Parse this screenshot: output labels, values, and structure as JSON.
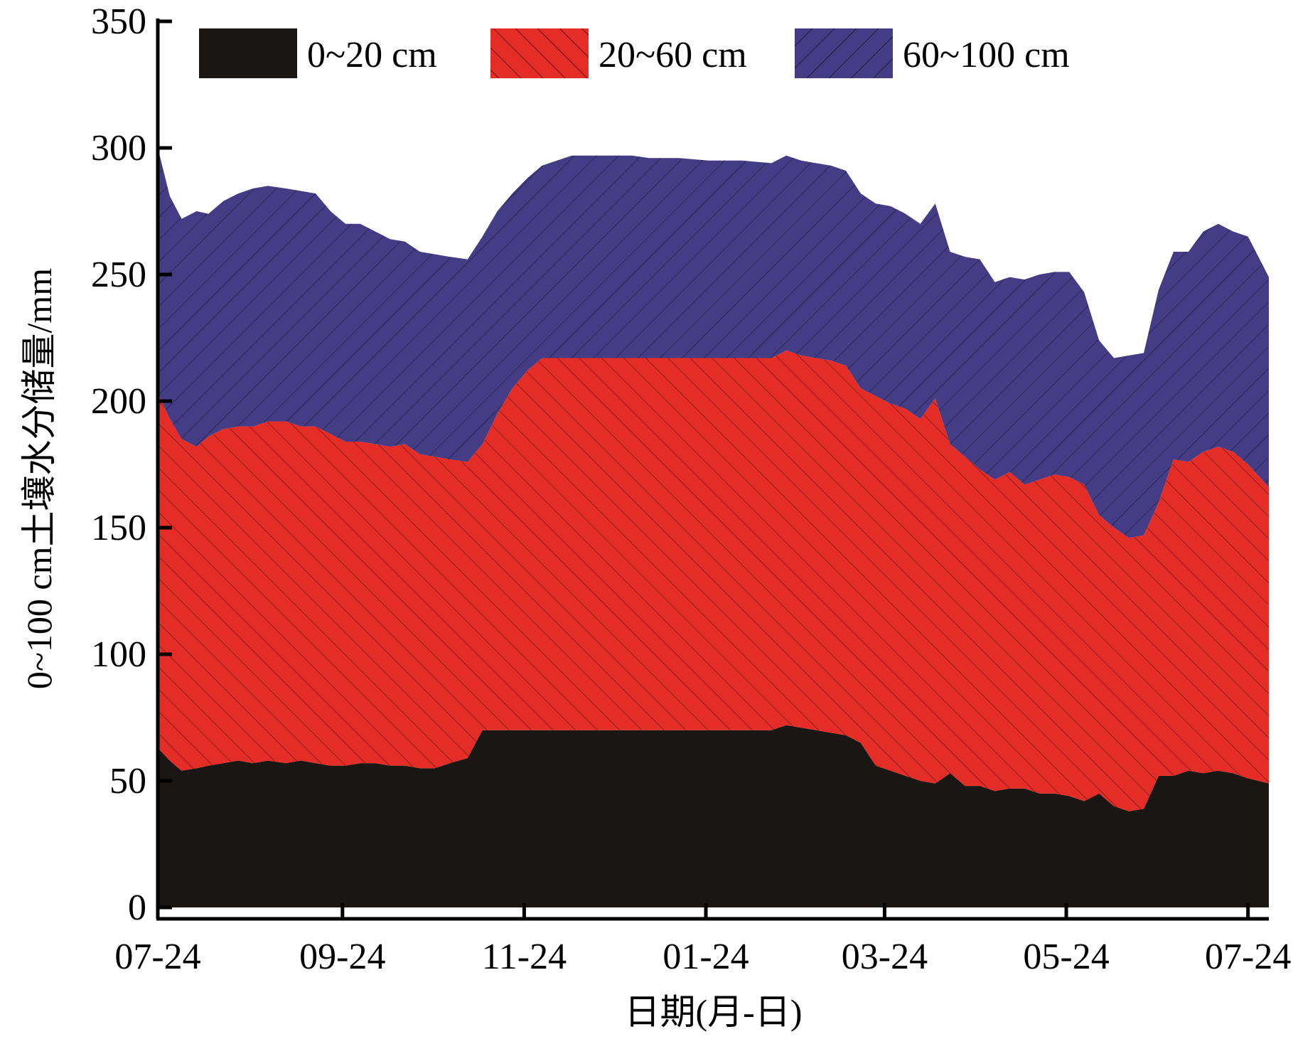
{
  "chart_data": {
    "type": "area",
    "stacked": true,
    "xlabel": "日期(月-日)",
    "ylabel": "0~100 cm土壤水分储量/mm",
    "ylim": [
      0,
      350
    ],
    "yticks": [
      0,
      50,
      100,
      150,
      200,
      250,
      300,
      350
    ],
    "xlim": [
      "2019-07-24",
      "2020-07-31"
    ],
    "xticks": [
      {
        "date": "2019-07-24",
        "label": "07-24"
      },
      {
        "date": "2019-09-24",
        "label": "09-24"
      },
      {
        "date": "2019-11-24",
        "label": "11-24"
      },
      {
        "date": "2020-01-24",
        "label": "01-24"
      },
      {
        "date": "2020-03-24",
        "label": "03-24"
      },
      {
        "date": "2020-05-24",
        "label": "05-24"
      },
      {
        "date": "2020-07-24",
        "label": "07-24"
      }
    ],
    "grid": false,
    "legend_position": "top",
    "x": [
      "2019-07-24",
      "2019-07-28",
      "2019-08-01",
      "2019-08-06",
      "2019-08-10",
      "2019-08-15",
      "2019-08-20",
      "2019-08-25",
      "2019-08-30",
      "2019-09-05",
      "2019-09-10",
      "2019-09-15",
      "2019-09-20",
      "2019-09-25",
      "2019-09-30",
      "2019-10-05",
      "2019-10-10",
      "2019-10-15",
      "2019-10-20",
      "2019-10-25",
      "2019-10-30",
      "2019-11-05",
      "2019-11-10",
      "2019-11-15",
      "2019-11-20",
      "2019-11-25",
      "2019-11-30",
      "2019-12-05",
      "2019-12-10",
      "2019-12-15",
      "2019-12-20",
      "2019-12-25",
      "2019-12-30",
      "2020-01-05",
      "2020-01-15",
      "2020-01-25",
      "2020-02-05",
      "2020-02-15",
      "2020-02-20",
      "2020-02-25",
      "2020-03-01",
      "2020-03-06",
      "2020-03-11",
      "2020-03-16",
      "2020-03-21",
      "2020-03-26",
      "2020-03-31",
      "2020-04-05",
      "2020-04-10",
      "2020-04-15",
      "2020-04-20",
      "2020-04-25",
      "2020-04-30",
      "2020-05-05",
      "2020-05-10",
      "2020-05-15",
      "2020-05-20",
      "2020-05-25",
      "2020-05-30",
      "2020-06-04",
      "2020-06-09",
      "2020-06-14",
      "2020-06-19",
      "2020-06-24",
      "2020-06-29",
      "2020-07-04",
      "2020-07-09",
      "2020-07-14",
      "2020-07-19",
      "2020-07-24",
      "2020-07-31"
    ],
    "series": [
      {
        "name": "0~20 cm",
        "color": "#1a1614",
        "hatch": "none",
        "values": [
          63,
          58,
          54,
          55,
          56,
          57,
          58,
          57,
          58,
          57,
          58,
          57,
          56,
          56,
          57,
          57,
          56,
          56,
          55,
          55,
          57,
          59,
          70,
          70,
          70,
          70,
          70,
          70,
          70,
          70,
          70,
          70,
          70,
          70,
          70,
          70,
          70,
          70,
          72,
          71,
          70,
          69,
          68,
          65,
          56,
          54,
          52,
          50,
          49,
          53,
          48,
          48,
          46,
          47,
          47,
          45,
          45,
          44,
          42,
          45,
          40,
          38,
          39,
          52,
          52,
          54,
          53,
          54,
          53,
          51,
          49
        ]
      },
      {
        "name": "20~60 cm",
        "color": "#e52d27",
        "hatch": "diagonal-up",
        "values": [
          140,
          135,
          131,
          127,
          130,
          132,
          132,
          133,
          134,
          135,
          132,
          133,
          131,
          128,
          127,
          126,
          126,
          127,
          124,
          123,
          120,
          117,
          113,
          125,
          135,
          142,
          147,
          147,
          147,
          147,
          147,
          147,
          147,
          147,
          147,
          147,
          147,
          147,
          148,
          147,
          147,
          147,
          146,
          140,
          146,
          145,
          145,
          143,
          152,
          130,
          130,
          125,
          123,
          125,
          120,
          124,
          126,
          126,
          125,
          110,
          110,
          108,
          108,
          108,
          125,
          122,
          127,
          128,
          127,
          124,
          117
        ]
      },
      {
        "name": "60~100 cm",
        "color": "#443d86",
        "hatch": "diagonal-down",
        "values": [
          97,
          88,
          87,
          93,
          88,
          90,
          92,
          94,
          93,
          92,
          93,
          92,
          88,
          86,
          86,
          84,
          82,
          80,
          80,
          80,
          80,
          80,
          82,
          80,
          77,
          76,
          76,
          78,
          80,
          80,
          80,
          80,
          80,
          79,
          79,
          78,
          78,
          77,
          77,
          77,
          77,
          77,
          77,
          77,
          76,
          78,
          77,
          77,
          77,
          76,
          79,
          83,
          78,
          77,
          81,
          81,
          80,
          81,
          76,
          69,
          67,
          72,
          72,
          84,
          82,
          83,
          87,
          88,
          87,
          90,
          83
        ]
      }
    ]
  }
}
